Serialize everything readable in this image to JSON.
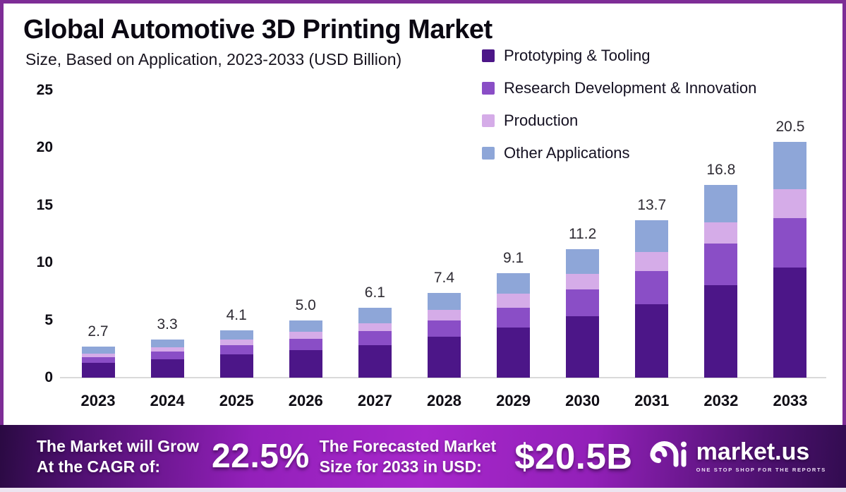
{
  "header": {
    "title": "Global Automotive 3D Printing Market",
    "subtitle": "Size, Based on Application, 2023-2033 (USD Billion)"
  },
  "colors": {
    "frame": "#7E2D96",
    "banner_center": "#A727CB",
    "banner_edge": "#2A0A42",
    "baseline": "#d9d9d9"
  },
  "chart_data": {
    "type": "bar",
    "stacked": true,
    "title": "Global Automotive 3D Printing Market Size, Based on Application, 2023-2033 (USD Billion)",
    "xlabel": "",
    "ylabel": "USD Billion",
    "ylim": [
      0,
      25
    ],
    "yticks": [
      0,
      5,
      10,
      15,
      20,
      25
    ],
    "grid": false,
    "legend_position": "top-right",
    "categories": [
      "2023",
      "2024",
      "2025",
      "2026",
      "2027",
      "2028",
      "2029",
      "2030",
      "2031",
      "2032",
      "2033"
    ],
    "totals": [
      "2.7",
      "3.3",
      "4.1",
      "5.0",
      "6.1",
      "7.4",
      "9.1",
      "11.2",
      "13.7",
      "16.8",
      "20.5"
    ],
    "series": [
      {
        "name": "Prototyping & Tooling",
        "color": "#4C1688",
        "values": [
          1.3,
          1.6,
          2.0,
          2.4,
          2.85,
          3.55,
          4.35,
          5.35,
          6.4,
          8.05,
          9.6
        ]
      },
      {
        "name": "Research Development & Innovation",
        "color": "#8A4EC6",
        "values": [
          0.5,
          0.65,
          0.8,
          1.0,
          1.2,
          1.45,
          1.75,
          2.35,
          2.9,
          3.6,
          4.3
        ]
      },
      {
        "name": "Production",
        "color": "#D5ACE8",
        "values": [
          0.3,
          0.4,
          0.5,
          0.6,
          0.7,
          0.9,
          1.2,
          1.35,
          1.65,
          1.85,
          2.5
        ]
      },
      {
        "name": "Other Applications",
        "color": "#8EA6D8",
        "values": [
          0.6,
          0.65,
          0.8,
          1.0,
          1.35,
          1.5,
          1.8,
          2.15,
          2.75,
          3.3,
          4.1
        ]
      }
    ]
  },
  "banner": {
    "cagr_label_line1": "The Market will Grow",
    "cagr_label_line2": "At the CAGR of:",
    "cagr_value": "22.5%",
    "forecast_label_line1": "The Forecasted Market",
    "forecast_label_line2": "Size for 2033 in USD:",
    "forecast_value": "$20.5B",
    "brand": "market.us",
    "tagline": "ONE STOP SHOP FOR THE REPORTS"
  }
}
